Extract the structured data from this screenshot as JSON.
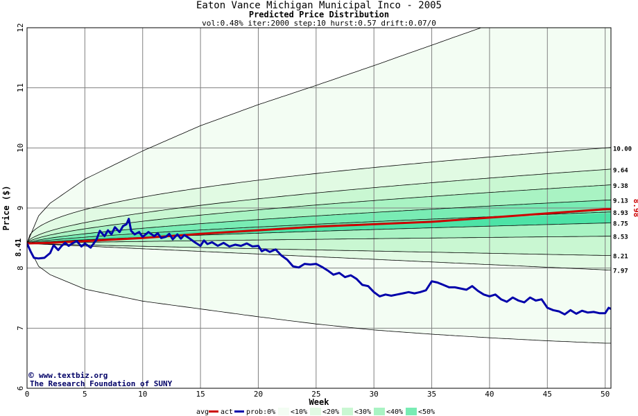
{
  "header": {
    "title": "Eaton Vance Michigan Municipal Inco - 2005",
    "subtitle": "Predicted Price Distribution",
    "params": "vol:0.48% iter:2000 step:10 hurst:0.57 drift:0.07/0"
  },
  "watermark": {
    "line1": "www.textbiz.org",
    "line2": "The Research Foundation of SUNY"
  },
  "legend": {
    "items": [
      "avg",
      "act",
      "prob:0%",
      "<10%",
      "<20%",
      "<30%",
      "<40%",
      "<50%"
    ]
  },
  "colors": {
    "avg": "#cc0000",
    "act": "#0000aa",
    "band0": "#f3fdf3",
    "band10": "#e1fae3",
    "band20": "#c9f7d2",
    "band30": "#a9f3c3",
    "band40": "#79ecb4",
    "band50": "#4de3a6",
    "grid": "#808080"
  },
  "chart_data": {
    "type": "area",
    "xlabel": "Week",
    "ylabel": "Price ($)",
    "xlim": [
      0,
      50.5
    ],
    "ylim": [
      6,
      12
    ],
    "xticks": [
      0,
      5,
      10,
      15,
      20,
      25,
      30,
      35,
      40,
      45,
      50
    ],
    "yticks": [
      6,
      7,
      8,
      9,
      10,
      11,
      12
    ],
    "grid": true,
    "start_label": "8.41",
    "end_label": "8.98",
    "right_labels": [
      "10.00",
      "9.64",
      "9.38",
      "9.13",
      "8.93",
      "8.75",
      "8.53",
      "8.21",
      "7.97"
    ],
    "envelope": {
      "x": [
        0,
        1,
        2,
        5,
        10,
        15,
        20,
        25,
        30,
        35,
        40,
        45,
        50
      ],
      "upper": [
        8.41,
        8.87,
        9.08,
        9.48,
        9.95,
        10.37,
        10.72,
        11.04,
        11.37,
        11.71,
        12.05,
        12.4,
        12.75
      ],
      "lower": [
        8.41,
        8.03,
        7.89,
        7.65,
        7.45,
        7.32,
        7.19,
        7.07,
        6.97,
        6.9,
        6.84,
        6.79,
        6.75
      ]
    },
    "percentile_curves": [
      {
        "end": 10.0,
        "p": 0.45
      },
      {
        "end": 9.64,
        "p": 0.55
      },
      {
        "end": 9.38,
        "p": 0.6
      },
      {
        "end": 9.13,
        "p": 0.65
      },
      {
        "end": 8.93,
        "p": 0.7
      },
      {
        "end": 8.75,
        "p": 0.75
      },
      {
        "end": 8.53,
        "p": 0.8
      },
      {
        "end": 8.21,
        "p": 0.9
      },
      {
        "end": 7.97,
        "p": 1.0
      }
    ],
    "series": [
      {
        "name": "avg",
        "x": [
          0,
          2,
          5,
          10,
          15,
          20,
          25,
          30,
          35,
          40,
          45,
          50,
          50.5
        ],
        "values": [
          8.41,
          8.42,
          8.45,
          8.5,
          8.57,
          8.63,
          8.69,
          8.73,
          8.77,
          8.84,
          8.91,
          8.98,
          8.98
        ]
      },
      {
        "name": "act",
        "x": [
          0,
          0.3,
          0.6,
          1.0,
          1.5,
          2.0,
          2.3,
          2.7,
          3.0,
          3.3,
          3.6,
          4.0,
          4.3,
          4.7,
          5.0,
          5.5,
          6.0,
          6.3,
          6.7,
          7.0,
          7.3,
          7.6,
          8.0,
          8.3,
          8.6,
          8.8,
          9.0,
          9.3,
          9.7,
          10.0,
          10.5,
          11.0,
          11.3,
          11.6,
          12.0,
          12.3,
          12.6,
          13.0,
          13.3,
          13.6,
          14.0,
          14.5,
          15.0,
          15.3,
          15.6,
          16.0,
          16.5,
          17.0,
          17.5,
          18.0,
          18.5,
          19.0,
          19.5,
          20.0,
          20.3,
          20.6,
          21.0,
          21.5,
          22.0,
          22.5,
          23.0,
          23.5,
          24.0,
          24.5,
          25.0,
          25.5,
          26.0,
          26.5,
          27.0,
          27.5,
          28.0,
          28.5,
          29.0,
          29.5,
          30.0,
          30.5,
          31.0,
          31.5,
          32.0,
          32.5,
          33.0,
          33.5,
          34.0,
          34.5,
          35.0,
          35.5,
          36.0,
          36.5,
          37.0,
          37.5,
          38.0,
          38.5,
          39.0,
          39.5,
          40.0,
          40.5,
          41.0,
          41.5,
          42.0,
          42.5,
          43.0,
          43.5,
          44.0,
          44.5,
          45.0,
          45.5,
          46.0,
          46.5,
          47.0,
          47.5,
          48.0,
          48.5,
          49.0,
          49.5,
          50.0,
          50.3,
          50.5
        ],
        "values": [
          8.41,
          8.28,
          8.17,
          8.16,
          8.17,
          8.25,
          8.38,
          8.3,
          8.37,
          8.42,
          8.37,
          8.42,
          8.45,
          8.36,
          8.41,
          8.34,
          8.47,
          8.62,
          8.53,
          8.63,
          8.56,
          8.68,
          8.6,
          8.7,
          8.73,
          8.82,
          8.62,
          8.56,
          8.6,
          8.52,
          8.6,
          8.53,
          8.58,
          8.5,
          8.52,
          8.57,
          8.48,
          8.56,
          8.49,
          8.55,
          8.5,
          8.43,
          8.37,
          8.46,
          8.4,
          8.43,
          8.37,
          8.42,
          8.36,
          8.39,
          8.37,
          8.41,
          8.36,
          8.37,
          8.28,
          8.31,
          8.27,
          8.31,
          8.21,
          8.14,
          8.03,
          8.01,
          8.07,
          8.06,
          8.07,
          8.02,
          7.96,
          7.89,
          7.92,
          7.85,
          7.88,
          7.82,
          7.72,
          7.7,
          7.6,
          7.53,
          7.56,
          7.54,
          7.56,
          7.58,
          7.6,
          7.58,
          7.6,
          7.63,
          7.78,
          7.76,
          7.72,
          7.68,
          7.68,
          7.66,
          7.64,
          7.7,
          7.62,
          7.56,
          7.53,
          7.56,
          7.48,
          7.44,
          7.51,
          7.46,
          7.43,
          7.51,
          7.46,
          7.48,
          7.34,
          7.3,
          7.28,
          7.23,
          7.3,
          7.24,
          7.29,
          7.26,
          7.27,
          7.25,
          7.25,
          7.34,
          7.32
        ]
      }
    ]
  }
}
